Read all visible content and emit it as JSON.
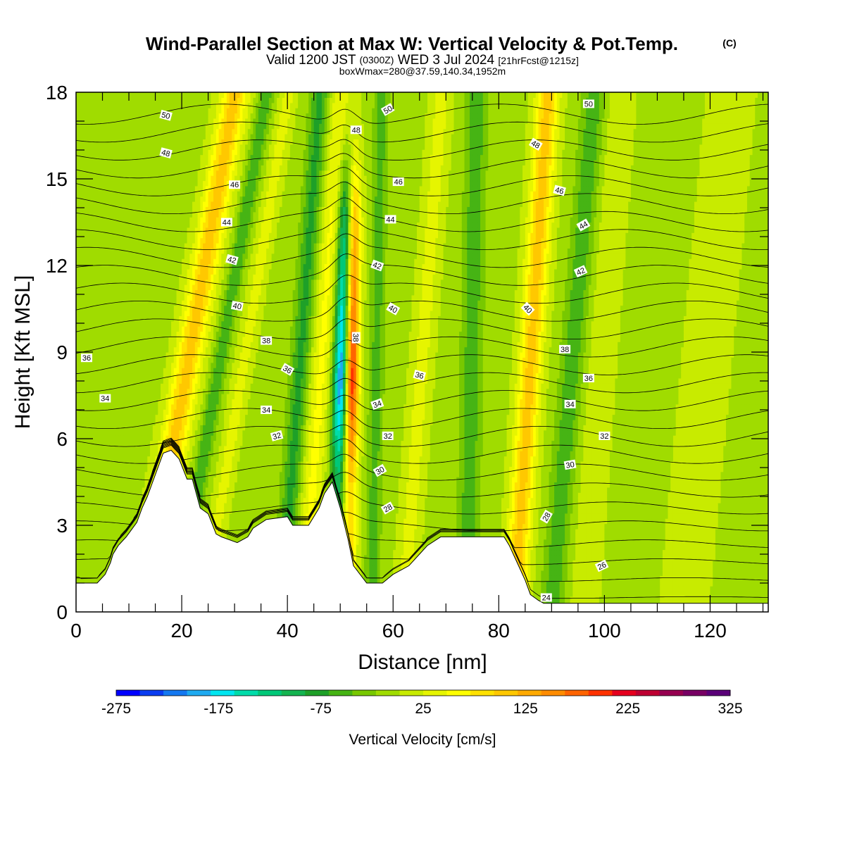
{
  "title": {
    "main": "Wind-Parallel Section at Max W: Vertical Velocity & Pot.Temp.",
    "main_mark": "(C)",
    "valid_prefix": "Valid 1200 JST",
    "valid_utc": "(0300Z)",
    "valid_date": "WED 3 Jul 2024",
    "valid_fcst": "[21hrFcst@1215z]",
    "box": "boxWmax=280@37.59,140.34,1952m"
  },
  "chart_data": {
    "type": "heatmap",
    "xlabel": "Distance [nm]",
    "ylabel": "Height [Kft MSL]",
    "xlim": [
      0,
      131
    ],
    "ylim": [
      0,
      18
    ],
    "x_ticks": [
      0,
      20,
      40,
      60,
      80,
      100,
      120
    ],
    "y_ticks": [
      0,
      3,
      6,
      9,
      12,
      15,
      18
    ],
    "colorbar": {
      "label": "Vertical Velocity [cm/s]",
      "range": [
        -275,
        325
      ],
      "tick_labels": [
        -275,
        -175,
        -75,
        25,
        125,
        225,
        325
      ],
      "colors": [
        "#0000ff",
        "#0a3cf0",
        "#1478f0",
        "#1eaaf0",
        "#00e6f0",
        "#00dcaa",
        "#00c878",
        "#14b450",
        "#1ea028",
        "#46b414",
        "#78c800",
        "#a0dc00",
        "#c8eb00",
        "#e6f500",
        "#ffff00",
        "#ffe100",
        "#ffc800",
        "#ffaa00",
        "#ff8c00",
        "#ff6400",
        "#ff3200",
        "#e6001e",
        "#be0032",
        "#960050",
        "#780064",
        "#5a0078"
      ]
    },
    "terrain_kft": [
      [
        0,
        1
      ],
      [
        4,
        1
      ],
      [
        5.5,
        1.3
      ],
      [
        6.5,
        1.7
      ],
      [
        7,
        2
      ],
      [
        8,
        2.3
      ],
      [
        9.5,
        2.6
      ],
      [
        11.5,
        3.1
      ],
      [
        12.5,
        3.6
      ],
      [
        13.5,
        4
      ],
      [
        14.5,
        4.5
      ],
      [
        15.5,
        5
      ],
      [
        16.5,
        5.5
      ],
      [
        18,
        5.6
      ],
      [
        19.5,
        5.3
      ],
      [
        21,
        4.6
      ],
      [
        22,
        4.6
      ],
      [
        23.5,
        3.6
      ],
      [
        25,
        3.4
      ],
      [
        26.5,
        2.7
      ],
      [
        27.5,
        2.6
      ],
      [
        30.5,
        2.4
      ],
      [
        32.5,
        2.6
      ],
      [
        33.5,
        2.9
      ],
      [
        36,
        3.2
      ],
      [
        40,
        3.3
      ],
      [
        41,
        3
      ],
      [
        44,
        3
      ],
      [
        46,
        3.6
      ],
      [
        47,
        4.1
      ],
      [
        48.5,
        4.5
      ],
      [
        50,
        3.6
      ],
      [
        51.5,
        2.5
      ],
      [
        52.5,
        1.6
      ],
      [
        55,
        1
      ],
      [
        58,
        1
      ],
      [
        60,
        1.3
      ],
      [
        63,
        1.6
      ],
      [
        65,
        2
      ],
      [
        66.5,
        2.3
      ],
      [
        69,
        2.6
      ],
      [
        81,
        2.6
      ],
      [
        82,
        2.3
      ],
      [
        84,
        1.5
      ],
      [
        85,
        1.1
      ],
      [
        86,
        0.6
      ],
      [
        87.5,
        0.4
      ],
      [
        88.5,
        0.3
      ],
      [
        131,
        0.3
      ]
    ],
    "w_bands": [
      {
        "center_surface_nm": 13,
        "tilt_nm_per_kft": 0.95,
        "half_width_nm": 2.6,
        "value_cm_s": 110
      },
      {
        "center_surface_nm": 19,
        "tilt_nm_per_kft": 0.95,
        "half_width_nm": 1.4,
        "value_cm_s": -60
      },
      {
        "center_surface_nm": 24,
        "tilt_nm_per_kft": 0.9,
        "half_width_nm": 1.6,
        "value_cm_s": 40
      },
      {
        "center_surface_nm": 39,
        "tilt_nm_per_kft": 0.4,
        "half_width_nm": 1.8,
        "value_cm_s": -70
      },
      {
        "center_surface_nm": 43,
        "tilt_nm_per_kft": 0.4,
        "half_width_nm": 2,
        "value_cm_s": 60
      },
      {
        "center_surface_nm": 49,
        "tilt_nm_per_kft": 0.18,
        "half_width_nm": 1.6,
        "value_cm_s": -275
      },
      {
        "center_surface_nm": 51.5,
        "tilt_nm_per_kft": 0.05,
        "half_width_nm": 1.5,
        "value_cm_s": 290
      },
      {
        "center_surface_nm": 56,
        "tilt_nm_per_kft": 0.1,
        "half_width_nm": 1.4,
        "value_cm_s": -50
      },
      {
        "center_surface_nm": 62,
        "tilt_nm_per_kft": 0.4,
        "half_width_nm": 2,
        "value_cm_s": 40
      },
      {
        "center_surface_nm": 74,
        "tilt_nm_per_kft": 0.1,
        "half_width_nm": 2,
        "value_cm_s": -55
      },
      {
        "center_surface_nm": 83,
        "tilt_nm_per_kft": 0.35,
        "half_width_nm": 2.2,
        "value_cm_s": 110
      },
      {
        "center_surface_nm": 90,
        "tilt_nm_per_kft": 0.45,
        "half_width_nm": 2.2,
        "value_cm_s": -55
      },
      {
        "center_surface_nm": 96,
        "tilt_nm_per_kft": 0.4,
        "half_width_nm": 2.5,
        "value_cm_s": 30
      },
      {
        "center_surface_nm": 115,
        "tilt_nm_per_kft": 0.5,
        "half_width_nm": 4,
        "value_cm_s": 30
      }
    ],
    "theta_contours": [
      24,
      26,
      28,
      30,
      32,
      34,
      36,
      38,
      40,
      42,
      44,
      46,
      48,
      50
    ],
    "theta_labels": [
      {
        "text": "50",
        "x": 17,
        "y": 17.2,
        "rot": 15
      },
      {
        "text": "48",
        "x": 17,
        "y": 15.9,
        "rot": 15
      },
      {
        "text": "46",
        "x": 30,
        "y": 14.8,
        "rot": 0
      },
      {
        "text": "44",
        "x": 28.5,
        "y": 13.5,
        "rot": 0
      },
      {
        "text": "42",
        "x": 29.5,
        "y": 12.2,
        "rot": 15
      },
      {
        "text": "40",
        "x": 30.5,
        "y": 10.6,
        "rot": 10
      },
      {
        "text": "38",
        "x": 36,
        "y": 9.4,
        "rot": 0
      },
      {
        "text": "36",
        "x": 40,
        "y": 8.4,
        "rot": 30
      },
      {
        "text": "34",
        "x": 36,
        "y": 7,
        "rot": 0
      },
      {
        "text": "32",
        "x": 38,
        "y": 6.1,
        "rot": -15
      },
      {
        "text": "36",
        "x": 2,
        "y": 8.8,
        "rot": 0
      },
      {
        "text": "34",
        "x": 5.5,
        "y": 7.4,
        "rot": 0
      },
      {
        "text": "50",
        "x": 59,
        "y": 17.4,
        "rot": -30
      },
      {
        "text": "48",
        "x": 53,
        "y": 16.7,
        "rot": 0
      },
      {
        "text": "46",
        "x": 61,
        "y": 14.9,
        "rot": 0
      },
      {
        "text": "44",
        "x": 59.5,
        "y": 13.6,
        "rot": 0
      },
      {
        "text": "42",
        "x": 57,
        "y": 12,
        "rot": 20
      },
      {
        "text": "40",
        "x": 60,
        "y": 10.5,
        "rot": 30
      },
      {
        "text": "38",
        "x": 53,
        "y": 9.5,
        "rot": 90
      },
      {
        "text": "36",
        "x": 65,
        "y": 8.2,
        "rot": 15
      },
      {
        "text": "34",
        "x": 57,
        "y": 7.2,
        "rot": -20
      },
      {
        "text": "32",
        "x": 59,
        "y": 6.1,
        "rot": 0
      },
      {
        "text": "30",
        "x": 57.5,
        "y": 4.9,
        "rot": -30
      },
      {
        "text": "28",
        "x": 59,
        "y": 3.6,
        "rot": -30
      },
      {
        "text": "50",
        "x": 97,
        "y": 17.6,
        "rot": 0
      },
      {
        "text": "48",
        "x": 87,
        "y": 16.2,
        "rot": 30
      },
      {
        "text": "46",
        "x": 91.5,
        "y": 14.6,
        "rot": 15
      },
      {
        "text": "44",
        "x": 96,
        "y": 13.4,
        "rot": -30
      },
      {
        "text": "42",
        "x": 95.5,
        "y": 11.8,
        "rot": -25
      },
      {
        "text": "40",
        "x": 85.5,
        "y": 10.5,
        "rot": 45
      },
      {
        "text": "38",
        "x": 92.5,
        "y": 9.1,
        "rot": 0
      },
      {
        "text": "36",
        "x": 97,
        "y": 8.1,
        "rot": 0
      },
      {
        "text": "34",
        "x": 93.5,
        "y": 7.2,
        "rot": 0
      },
      {
        "text": "32",
        "x": 100,
        "y": 6.1,
        "rot": 0
      },
      {
        "text": "30",
        "x": 93.5,
        "y": 5.1,
        "rot": -10
      },
      {
        "text": "28",
        "x": 89,
        "y": 3.3,
        "rot": -60
      },
      {
        "text": "26",
        "x": 99.5,
        "y": 1.6,
        "rot": -25
      },
      {
        "text": "24",
        "x": 89,
        "y": 0.5,
        "rot": 0
      }
    ]
  }
}
